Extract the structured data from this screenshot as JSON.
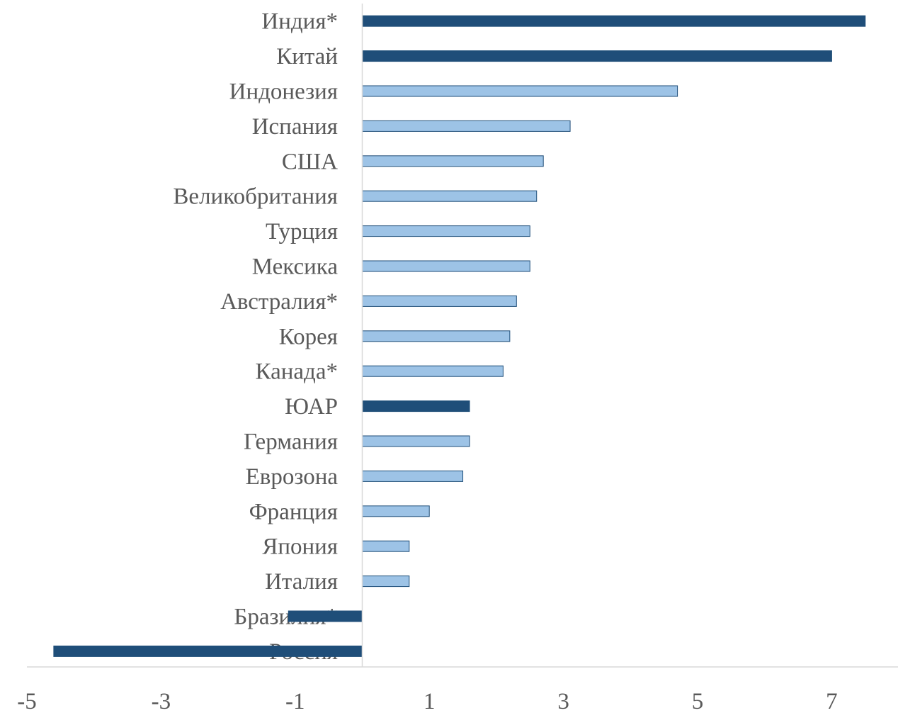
{
  "chart_data": {
    "type": "bar",
    "orientation": "horizontal",
    "title": "",
    "xlabel": "",
    "ylabel": "",
    "categories": [
      "Индия*",
      "Китай",
      "Индонезия",
      "Испания",
      "США",
      "Великобритания",
      "Турция",
      "Мексика",
      "Австралия*",
      "Корея",
      "Канада*",
      "ЮАР",
      "Германия",
      "Еврозона",
      "Франция",
      "Япония",
      "Италия",
      "Бразилия*",
      "Россия"
    ],
    "values": [
      7.5,
      7.0,
      4.7,
      3.1,
      2.7,
      2.6,
      2.5,
      2.5,
      2.3,
      2.2,
      2.1,
      1.6,
      1.6,
      1.5,
      1.0,
      0.7,
      0.7,
      -1.1,
      -4.6
    ],
    "highlighted": [
      true,
      true,
      false,
      false,
      false,
      false,
      false,
      false,
      false,
      false,
      false,
      true,
      false,
      false,
      false,
      false,
      false,
      true,
      true
    ],
    "xlim": [
      -5,
      8
    ],
    "xticks": [
      "-5",
      "-3",
      "-1",
      "1",
      "3",
      "5",
      "7"
    ],
    "xtick_values": [
      -5,
      -3,
      -1,
      1,
      3,
      5,
      7
    ],
    "grid": false,
    "legend": "none",
    "colors": {
      "highlight": "#1f4e79",
      "normal": "#9dc3e6",
      "border": "#1f4e79",
      "label": "#595959",
      "axis": "#d9d9d9"
    }
  }
}
